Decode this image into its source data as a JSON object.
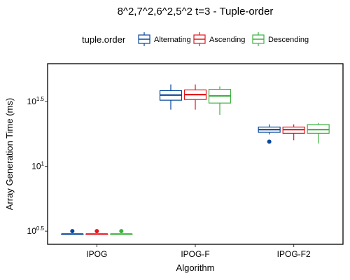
{
  "chart_data": {
    "type": "boxplot",
    "title": "8^2,7^2,6^2,5^2 t=3 - Tuple-order",
    "xlabel": "Algorithm",
    "ylabel": "Array Generation Time (ms)",
    "y_scale": "log10",
    "ylim": [
      2.5,
      62
    ],
    "y_ticks": [
      {
        "base": "10",
        "exp": "0.5",
        "value": 3.16
      },
      {
        "base": "10",
        "exp": "1",
        "value": 10
      },
      {
        "base": "10",
        "exp": "1.5",
        "value": 31.6
      }
    ],
    "categories": [
      "IPOG",
      "IPOG-F",
      "IPOG-F2"
    ],
    "legend": {
      "title": "tuple.order",
      "position": "top",
      "entries": [
        "Alternating",
        "Ascending",
        "Descending"
      ]
    },
    "series": [
      {
        "name": "Alternating",
        "color": "#08479a",
        "boxes": [
          {
            "min": 3,
            "q1": 3,
            "median": 3,
            "q3": 3,
            "max": 3,
            "outliers": [
              3.16
            ]
          },
          {
            "min": 27.4,
            "q1": 32.4,
            "median": 35.5,
            "q3": 38.4,
            "max": 42.9,
            "outliers": []
          },
          {
            "min": 17.6,
            "q1": 18.3,
            "median": 19.2,
            "q3": 20.1,
            "max": 21.1,
            "outliers": [
              15.5
            ]
          }
        ]
      },
      {
        "name": "Ascending",
        "color": "#e4151c",
        "boxes": [
          {
            "min": 3,
            "q1": 3,
            "median": 3,
            "q3": 3,
            "max": 3,
            "outliers": [
              3.16
            ]
          },
          {
            "min": 27.4,
            "q1": 32.8,
            "median": 35.8,
            "q3": 38.9,
            "max": 42.9,
            "outliers": []
          },
          {
            "min": 15.9,
            "q1": 18.0,
            "median": 19.2,
            "q3": 20.1,
            "max": 21.1,
            "outliers": []
          }
        ]
      },
      {
        "name": "Descending",
        "color": "#3bb13d",
        "boxes": [
          {
            "min": 3,
            "q1": 3,
            "median": 3,
            "q3": 3,
            "max": 3,
            "outliers": [
              3.16
            ]
          },
          {
            "min": 25.0,
            "q1": 30.8,
            "median": 35.0,
            "q3": 39.3,
            "max": 41.4,
            "outliers": []
          },
          {
            "min": 15.0,
            "q1": 18.0,
            "median": 19.2,
            "q3": 21.0,
            "max": 21.6,
            "outliers": []
          }
        ]
      }
    ]
  }
}
